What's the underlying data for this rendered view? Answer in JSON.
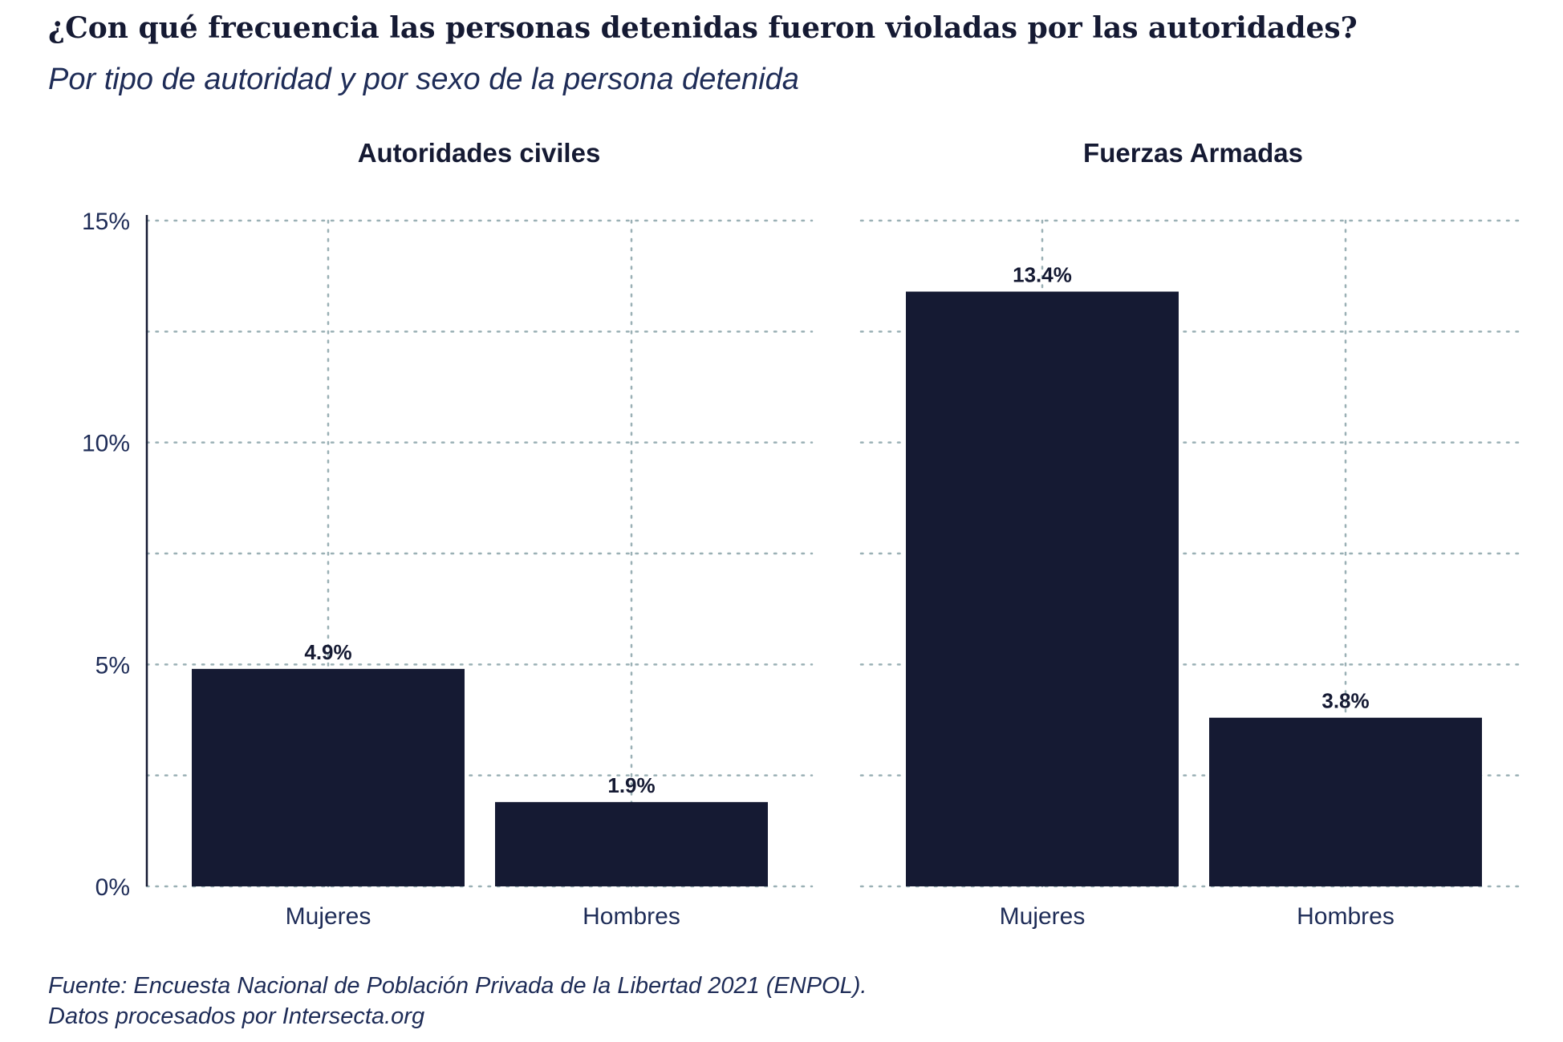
{
  "title": "¿Con qué frecuencia las personas detenidas fueron violadas por las autoridades?",
  "subtitle": "Por tipo de autoridad y por sexo de la persona detenida",
  "caption": {
    "line1": "Fuente: Encuesta Nacional de Población Privada de la Libertad 2021 (ENPOL).",
    "line2": "Datos procesados por Intersecta.org"
  },
  "colors": {
    "bar": "#151a33",
    "grid": "#9ab0b5",
    "text": "#1e2c57"
  },
  "chart_data": {
    "type": "bar",
    "ylim": [
      0,
      15
    ],
    "yticks": [
      0,
      5,
      10,
      15
    ],
    "ytick_labels": [
      "0%",
      "5%",
      "10%",
      "15%"
    ],
    "grid": true,
    "categories": [
      "Mujeres",
      "Hombres"
    ],
    "panels": [
      {
        "title": "Autoridades civiles",
        "values": [
          4.9,
          1.9
        ],
        "labels": [
          "4.9%",
          "1.9%"
        ]
      },
      {
        "title": "Fuerzas Armadas",
        "values": [
          13.4,
          3.8
        ],
        "labels": [
          "13.4%",
          "3.8%"
        ]
      }
    ]
  }
}
